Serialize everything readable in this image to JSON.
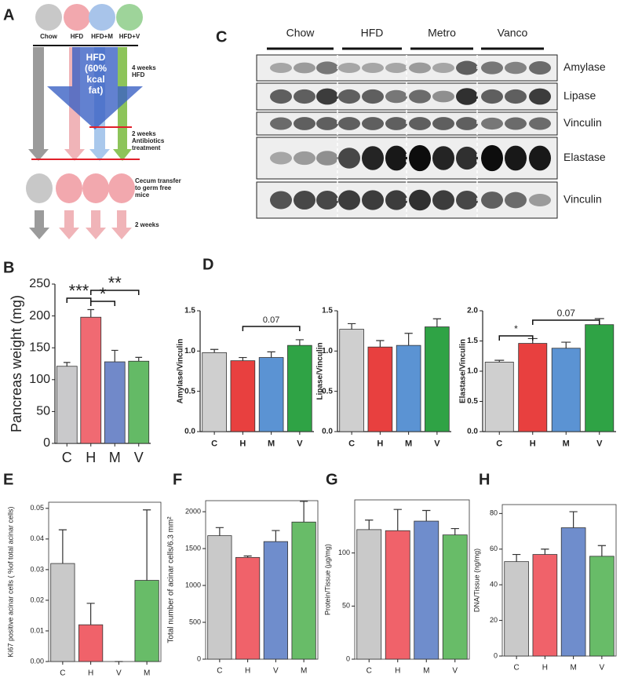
{
  "diagram": {
    "panel": "A",
    "groups": [
      "Chow",
      "HFD",
      "HFD+M",
      "HFD+V"
    ],
    "arrow_text": "HFD (60% kcal fat)",
    "steps": [
      "4 weeks HFD",
      "2 weeks Antibiotics treatment",
      "Cecum transfer to germ free mice",
      "2 weeks"
    ]
  },
  "blot": {
    "panel": "C",
    "groups": [
      "Chow",
      "HFD",
      "Metro",
      "Vanco"
    ],
    "rows": [
      "Amylase",
      "Lipase",
      "Vinculin",
      "Elastase",
      "Vinculin"
    ]
  },
  "chart_data": [
    {
      "type": "bar",
      "panel": "B",
      "ylabel": "Pancreas weight (mg)",
      "categories": [
        "C",
        "H",
        "M",
        "V"
      ],
      "values": [
        121,
        198,
        128,
        129
      ],
      "errors": [
        6,
        12,
        18,
        6
      ],
      "colors": [
        "#c9c9cb",
        "#f06a72",
        "#7189c9",
        "#64ba66"
      ],
      "ylim": [
        0,
        250
      ],
      "yticks": [
        0,
        50,
        100,
        150,
        200,
        250
      ],
      "annotations": [
        "***",
        "*",
        "**"
      ]
    },
    {
      "type": "bar",
      "panel": "D",
      "ylabel": "Amylase/Vinculin",
      "categories": [
        "C",
        "H",
        "M",
        "V"
      ],
      "values": [
        0.98,
        0.88,
        0.92,
        1.07
      ],
      "errors": [
        0.04,
        0.04,
        0.07,
        0.07
      ],
      "colors": [
        "#cfcfcf",
        "#e8403f",
        "#5b93d3",
        "#2fa345"
      ],
      "ylim": [
        0,
        1.5
      ],
      "yticks": [
        {
          "value": 0,
          "label": "0.0"
        },
        0.5,
        {
          "value": 1,
          "label": "1.0"
        },
        1.5
      ],
      "annotations": [
        "0.07"
      ]
    },
    {
      "type": "bar",
      "ylabel": "Lipase/Vinculin",
      "categories": [
        "C",
        "H",
        "M",
        "V"
      ],
      "values": [
        1.27,
        1.05,
        1.07,
        1.3
      ],
      "errors": [
        0.07,
        0.08,
        0.15,
        0.1
      ],
      "colors": [
        "#cfcfcf",
        "#e8403f",
        "#5b93d3",
        "#2fa345"
      ],
      "ylim": [
        0,
        1.5
      ],
      "yticks": [
        {
          "value": 0,
          "label": "0.0"
        },
        0.5,
        {
          "value": 1,
          "label": "1.0"
        },
        1.5
      ],
      "annotations": []
    },
    {
      "type": "bar",
      "ylabel": "Elastase/Vinculin",
      "categories": [
        "C",
        "H",
        "M",
        "V"
      ],
      "values": [
        1.15,
        1.46,
        1.38,
        1.77
      ],
      "errors": [
        0.03,
        0.08,
        0.1,
        0.1
      ],
      "colors": [
        "#cfcfcf",
        "#e8403f",
        "#5b93d3",
        "#2fa345"
      ],
      "ylim": [
        0,
        2
      ],
      "yticks": [
        {
          "value": 0,
          "label": "0.0"
        },
        0.5,
        {
          "value": 1,
          "label": "1.0"
        },
        1.5,
        {
          "value": 2,
          "label": "2.0"
        }
      ],
      "annotations": [
        "*",
        "0.07"
      ]
    },
    {
      "type": "bar",
      "panel": "E",
      "ylabel": "Ki67 positive acinar cells ( %of total acinar cells)",
      "categories": [
        "C",
        "H",
        "V",
        "M"
      ],
      "values": [
        0.032,
        0.012,
        0,
        0.0265
      ],
      "errors": [
        0.011,
        0.007,
        0,
        0.023
      ],
      "colors": [
        "#c9c9c9",
        "#f0626a",
        "#6f8dcc",
        "#68bc68"
      ],
      "ylim": [
        0,
        0.052
      ],
      "yticks": [
        {
          "value": 0,
          "label": "0.00"
        },
        0.01,
        0.02,
        0.03,
        0.04,
        0.05
      ],
      "annotations": []
    },
    {
      "type": "bar",
      "panel": "F",
      "ylabel": "Total number of acinar cells/6.3 mm²",
      "categories": [
        "C",
        "H",
        "V",
        "M"
      ],
      "values": [
        1675,
        1380,
        1595,
        1860
      ],
      "errors": [
        110,
        20,
        150,
        280
      ],
      "colors": [
        "#c9c9c9",
        "#f0626a",
        "#6f8dcc",
        "#68bc68"
      ],
      "ylim": [
        0,
        2150
      ],
      "yticks": [
        0,
        500,
        1000,
        1500,
        2000
      ],
      "annotations": []
    },
    {
      "type": "bar",
      "panel": "G",
      "ylabel": "Protein/Tissue (µg/mg)",
      "categories": [
        "C",
        "H",
        "M",
        "V"
      ],
      "values": [
        122,
        121,
        130,
        117
      ],
      "errors": [
        9,
        20,
        10,
        6
      ],
      "colors": [
        "#c9c9c9",
        "#f0626a",
        "#6f8dcc",
        "#68bc68"
      ],
      "ylim": [
        0,
        150
      ],
      "yticks": [
        0,
        50,
        100
      ],
      "annotations": []
    },
    {
      "type": "bar",
      "panel": "H",
      "ylabel": "DNA/Tissue (ng/mg)",
      "categories": [
        "C",
        "H",
        "M",
        "V"
      ],
      "values": [
        53,
        57,
        72,
        56
      ],
      "errors": [
        4,
        3,
        9,
        6
      ],
      "colors": [
        "#c9c9c9",
        "#f0626a",
        "#6f8dcc",
        "#68bc68"
      ],
      "ylim": [
        0,
        85
      ],
      "yticks": [
        0,
        20,
        40,
        60,
        80
      ],
      "annotations": []
    }
  ]
}
